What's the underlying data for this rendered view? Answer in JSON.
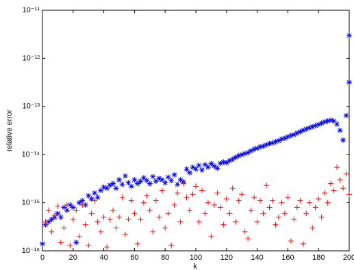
{
  "chart_data": {
    "type": "scatter",
    "xlabel": "k",
    "ylabel": "relative error",
    "xlim": [
      0,
      200
    ],
    "xticks": [
      0,
      20,
      40,
      60,
      80,
      100,
      120,
      140,
      160,
      180,
      200
    ],
    "ylim": [
      1e-16,
      1e-11
    ],
    "log_y": true,
    "yticks": [
      {
        "value": 1e-16,
        "label": "10⁻¹⁶"
      },
      {
        "value": 1e-15,
        "label": "10⁻¹⁵"
      },
      {
        "value": 1e-14,
        "label": "10⁻¹⁴"
      },
      {
        "value": 1e-13,
        "label": "10⁻¹³"
      },
      {
        "value": 1e-12,
        "label": "10⁻¹²"
      },
      {
        "value": 1e-11,
        "label": "10⁻¹¹"
      }
    ],
    "series": [
      {
        "color": "#0000ff",
        "marker": "*",
        "x": [
          0,
          2,
          4,
          6,
          8,
          10,
          12,
          14,
          16,
          18,
          20,
          22,
          24,
          26,
          28,
          30,
          32,
          34,
          36,
          38,
          40,
          42,
          44,
          46,
          48,
          50,
          52,
          54,
          56,
          58,
          60,
          62,
          64,
          66,
          68,
          70,
          72,
          74,
          76,
          78,
          80,
          82,
          84,
          86,
          88,
          90,
          92,
          94,
          96,
          98,
          100,
          102,
          104,
          106,
          108,
          110,
          112,
          114,
          116,
          118,
          120,
          122,
          124,
          126,
          128,
          130,
          132,
          134,
          136,
          138,
          140,
          142,
          144,
          146,
          148,
          150,
          152,
          154,
          156,
          158,
          160,
          162,
          164,
          166,
          168,
          170,
          172,
          174,
          176,
          178,
          180,
          182,
          184,
          186,
          188,
          190,
          192,
          194,
          196,
          198,
          200,
          200
        ],
        "values": [
          1.4e-16,
          3.5e-16,
          4e-16,
          4.5e-16,
          5e-16,
          6e-16,
          5e-16,
          8e-16,
          7e-16,
          9e-16,
          8e-16,
          1.5e-16,
          1e-15,
          1.1e-15,
          9e-16,
          1.4e-15,
          1.2e-15,
          1.6e-15,
          1.3e-15,
          1.8e-15,
          2.1e-15,
          2e-15,
          2.3e-15,
          2.5e-15,
          2e-15,
          3e-15,
          2.4e-15,
          3.6e-15,
          2.6e-15,
          2.2e-15,
          3e-15,
          2.5e-15,
          2.8e-15,
          3.3e-15,
          2.9e-15,
          2.5e-15,
          3.5e-15,
          2.8e-15,
          3.2e-15,
          3e-15,
          2.6e-15,
          3.4e-15,
          2.9e-15,
          3.8e-15,
          2.4e-15,
          3e-15,
          2.7e-15,
          5e-15,
          4.2e-15,
          5.5e-15,
          5e-15,
          6e-15,
          4.8e-15,
          6.2e-15,
          5.5e-15,
          6.5e-15,
          5.8e-15,
          5.2e-15,
          6.6e-15,
          7e-15,
          6.8e-15,
          7.5e-15,
          8e-15,
          8.8e-15,
          9.5e-15,
          1e-14,
          1.05e-14,
          1.1e-14,
          1.2e-14,
          1.3e-14,
          1.35e-14,
          1.45e-14,
          1.5e-14,
          1.6e-14,
          1.7e-14,
          1.75e-14,
          1.85e-14,
          1.95e-14,
          2.1e-14,
          2.2e-14,
          2.35e-14,
          2.5e-14,
          2.6e-14,
          2.8e-14,
          3e-14,
          3.2e-14,
          3.4e-14,
          3.6e-14,
          3.8e-14,
          4e-14,
          4.2e-14,
          4.5e-14,
          4.8e-14,
          5e-14,
          5.2e-14,
          5e-14,
          4.3e-14,
          3.2e-14,
          2e-14,
          6.5e-14,
          3e-12,
          3.2e-13
        ]
      },
      {
        "color": "#ff0000",
        "marker": "+",
        "x": [
          2,
          4,
          6,
          8,
          10,
          12,
          14,
          16,
          18,
          20,
          22,
          24,
          26,
          28,
          30,
          32,
          34,
          36,
          38,
          40,
          42,
          44,
          46,
          48,
          50,
          52,
          54,
          56,
          58,
          60,
          62,
          64,
          66,
          68,
          70,
          72,
          74,
          76,
          78,
          80,
          82,
          84,
          86,
          88,
          90,
          92,
          94,
          96,
          98,
          100,
          102,
          104,
          106,
          108,
          110,
          112,
          114,
          116,
          118,
          120,
          122,
          124,
          126,
          128,
          130,
          132,
          134,
          136,
          138,
          140,
          142,
          144,
          146,
          148,
          150,
          152,
          154,
          156,
          158,
          160,
          162,
          164,
          166,
          168,
          170,
          172,
          174,
          176,
          178,
          180,
          182,
          184,
          186,
          188,
          190,
          192,
          194,
          196,
          198,
          200
        ],
        "values": [
          4e-16,
          7e-16,
          2.5e-16,
          5.5e-16,
          8.5e-16,
          1.5e-16,
          3e-16,
          9e-16,
          1.3e-16,
          4.5e-16,
          7e-16,
          2e-16,
          9e-16,
          3.5e-16,
          1.3e-16,
          6e-16,
          1.1e-15,
          4e-16,
          2.5e-16,
          5e-16,
          1.2e-16,
          4.5e-16,
          7e-16,
          3e-16,
          5e-16,
          1.3e-15,
          2.2e-16,
          4.5e-16,
          1.1e-15,
          6e-16,
          1.4e-16,
          4.5e-16,
          1e-15,
          1.4e-15,
          7e-16,
          2.5e-16,
          1.1e-15,
          5e-16,
          1.8e-15,
          3e-16,
          6e-16,
          1.3e-16,
          9e-16,
          1.6e-15,
          4e-16,
          2.5e-15,
          1.3e-15,
          7e-16,
          1.5e-15,
          2.2e-15,
          4e-16,
          1.8e-15,
          6e-16,
          1e-15,
          2e-16,
          9e-16,
          1.6e-15,
          8e-16,
          3.5e-16,
          1.2e-15,
          6e-16,
          2e-15,
          4e-16,
          1.1e-15,
          1.5e-15,
          2.5e-16,
          1.8e-16,
          7e-16,
          1.3e-15,
          4e-16,
          1.1e-15,
          6e-16,
          2.3e-15,
          8e-16,
          1.1e-15,
          3.5e-16,
          5e-16,
          1e-15,
          6e-16,
          1.3e-15,
          1.6e-16,
          4.5e-16,
          8e-16,
          1.1e-15,
          1.4e-16,
          6e-16,
          1e-15,
          3e-16,
          8e-16,
          1.2e-15,
          5e-16,
          1.6e-15,
          1e-15,
          2.5e-15,
          1.8e-15,
          5.5e-15,
          3e-15,
          2e-15,
          4e-15,
          1.5e-15
        ]
      }
    ]
  }
}
